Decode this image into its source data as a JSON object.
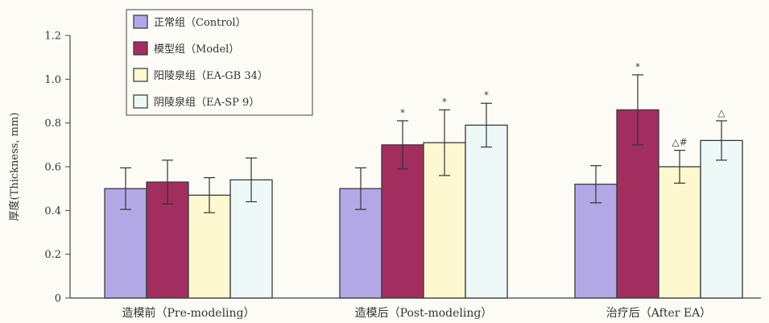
{
  "chart_data": {
    "type": "bar",
    "title": "",
    "ylabel": "厚度(Thickness, mm)",
    "xlabel": "",
    "ylim": [
      0,
      1.2
    ],
    "yticks": [
      "0",
      "0.2",
      "0.4",
      "0.6",
      "0.8",
      "1.0",
      "1.2"
    ],
    "grid": false,
    "legend_position": "top-left",
    "categories": [
      "造模前（Pre-modeling）",
      "造模后（Post-modeling）",
      "治疗后（After EA）"
    ],
    "series": [
      {
        "name": "正常组（Control）",
        "color": "#b3a8e6",
        "values": [
          0.5,
          0.5,
          0.52
        ],
        "errors": [
          0.095,
          0.095,
          0.085
        ],
        "annotations": [
          "",
          "",
          ""
        ]
      },
      {
        "name": "模型组（Model）",
        "color": "#a22e5f",
        "values": [
          0.53,
          0.7,
          0.86
        ],
        "errors": [
          0.1,
          0.11,
          0.16
        ],
        "annotations": [
          "",
          "*",
          "*"
        ]
      },
      {
        "name": "阳陵泉组（EA-GB 34）",
        "color": "#fdf8d0",
        "values": [
          0.47,
          0.71,
          0.6
        ],
        "errors": [
          0.08,
          0.15,
          0.075
        ],
        "annotations": [
          "",
          "*",
          "△#"
        ]
      },
      {
        "name": "阴陵泉组（EA-SP 9）",
        "color": "#edf8f7",
        "values": [
          0.54,
          0.79,
          0.72
        ],
        "errors": [
          0.1,
          0.1,
          0.09
        ],
        "annotations": [
          "",
          "*",
          "△"
        ]
      }
    ]
  }
}
